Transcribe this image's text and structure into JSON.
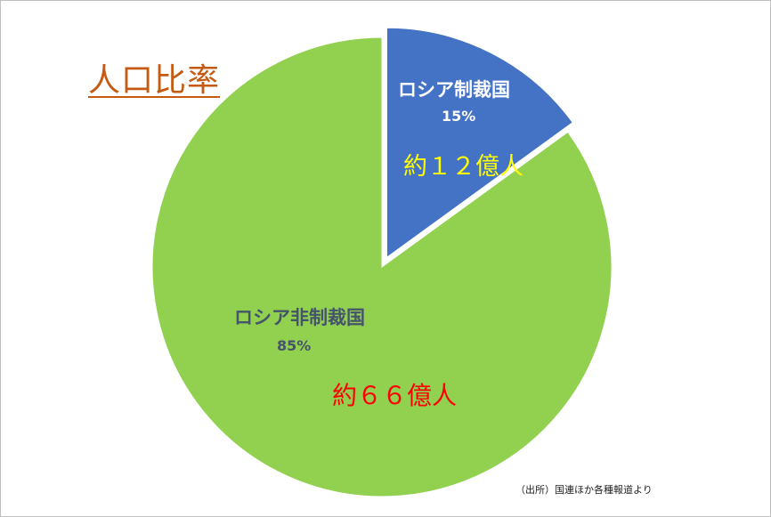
{
  "chart_data": {
    "type": "pie",
    "title": "人口比率",
    "slices": [
      {
        "label": "ロシア制裁国",
        "value": 15,
        "value_label": "15%",
        "annotation": "約１２億人",
        "color": "#4472c4",
        "exploded": true
      },
      {
        "label": "ロシア非制裁国",
        "value": 85,
        "value_label": "85%",
        "annotation": "約６６億人",
        "color": "#92d050",
        "exploded": false
      }
    ],
    "start_angle": "12 o'clock",
    "direction": "clockwise",
    "legend": "none"
  },
  "source_note": "（出所）国連ほか各種報道より"
}
